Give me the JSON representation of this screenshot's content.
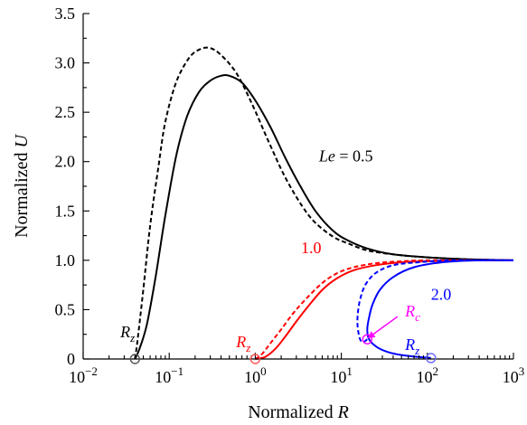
{
  "chart_data": {
    "type": "line",
    "x_scale": "log",
    "xlim": [
      0.01,
      1000
    ],
    "ylim": [
      0,
      3.5
    ],
    "x_ticks": [
      0.01,
      0.1,
      1,
      10,
      100,
      1000
    ],
    "x_tick_labels": [
      {
        "base": "10",
        "exp": "−2"
      },
      {
        "base": "10",
        "exp": "−1"
      },
      {
        "base": "10",
        "exp": "0"
      },
      {
        "base": "10",
        "exp": "1"
      },
      {
        "base": "10",
        "exp": "2"
      },
      {
        "base": "10",
        "exp": "3"
      }
    ],
    "y_ticks": [
      0,
      0.5,
      1.0,
      1.5,
      2.0,
      2.5,
      3.0,
      3.5
    ],
    "y_tick_labels": [
      "0",
      "0.5",
      "1.0",
      "1.5",
      "2.0",
      "2.5",
      "3.0",
      "3.5"
    ],
    "xlabel": {
      "prefix": "Normalized ",
      "var": "R"
    },
    "ylabel": {
      "prefix": "Normalized ",
      "var": "U"
    },
    "grid": false,
    "legend": "none",
    "series": [
      {
        "color": "#000000",
        "style": "solid",
        "points": [
          [
            0.04,
            0
          ],
          [
            0.045,
            0.1
          ],
          [
            0.055,
            0.35
          ],
          [
            0.07,
            0.85
          ],
          [
            0.09,
            1.45
          ],
          [
            0.12,
            2.05
          ],
          [
            0.16,
            2.45
          ],
          [
            0.22,
            2.7
          ],
          [
            0.3,
            2.82
          ],
          [
            0.4,
            2.87
          ],
          [
            0.5,
            2.87
          ],
          [
            0.7,
            2.8
          ],
          [
            1.0,
            2.62
          ],
          [
            1.5,
            2.35
          ],
          [
            2.2,
            2.05
          ],
          [
            3.2,
            1.78
          ],
          [
            5,
            1.5
          ],
          [
            8,
            1.3
          ],
          [
            12,
            1.2
          ],
          [
            20,
            1.12
          ],
          [
            40,
            1.06
          ],
          [
            100,
            1.03
          ],
          [
            300,
            1.01
          ],
          [
            1000,
            1.0
          ]
        ]
      },
      {
        "color": "#000000",
        "style": "dashed",
        "points": [
          [
            0.04,
            0
          ],
          [
            0.043,
            0.2
          ],
          [
            0.05,
            0.7
          ],
          [
            0.06,
            1.35
          ],
          [
            0.075,
            1.95
          ],
          [
            0.09,
            2.4
          ],
          [
            0.12,
            2.8
          ],
          [
            0.17,
            3.05
          ],
          [
            0.23,
            3.14
          ],
          [
            0.3,
            3.15
          ],
          [
            0.4,
            3.08
          ],
          [
            0.6,
            2.9
          ],
          [
            0.9,
            2.6
          ],
          [
            1.4,
            2.22
          ],
          [
            2.2,
            1.85
          ],
          [
            3.5,
            1.55
          ],
          [
            5,
            1.38
          ],
          [
            8,
            1.24
          ],
          [
            12,
            1.17
          ],
          [
            20,
            1.1
          ],
          [
            40,
            1.06
          ],
          [
            100,
            1.03
          ],
          [
            300,
            1.01
          ],
          [
            1000,
            1.0
          ]
        ]
      },
      {
        "color": "#ff0000",
        "style": "solid",
        "points": [
          [
            1,
            0
          ],
          [
            1.3,
            0.02
          ],
          [
            1.7,
            0.1
          ],
          [
            2.2,
            0.22
          ],
          [
            3,
            0.38
          ],
          [
            4,
            0.52
          ],
          [
            6,
            0.7
          ],
          [
            9,
            0.82
          ],
          [
            14,
            0.9
          ],
          [
            25,
            0.95
          ],
          [
            50,
            0.98
          ],
          [
            100,
            0.99
          ],
          [
            300,
            1.0
          ],
          [
            1000,
            1.0
          ]
        ]
      },
      {
        "color": "#ff0000",
        "style": "dashed",
        "points": [
          [
            1,
            0
          ],
          [
            1.2,
            0.05
          ],
          [
            1.5,
            0.16
          ],
          [
            2,
            0.3
          ],
          [
            2.8,
            0.47
          ],
          [
            4,
            0.62
          ],
          [
            6,
            0.77
          ],
          [
            9,
            0.87
          ],
          [
            14,
            0.93
          ],
          [
            25,
            0.97
          ],
          [
            50,
            0.99
          ],
          [
            100,
            1.0
          ],
          [
            300,
            1.0
          ],
          [
            1000,
            1.0
          ]
        ]
      },
      {
        "color": "#0000ff",
        "style": "solid",
        "points": [
          [
            110,
            0.01
          ],
          [
            80,
            0.02
          ],
          [
            50,
            0.04
          ],
          [
            35,
            0.07
          ],
          [
            26,
            0.12
          ],
          [
            21,
            0.2
          ],
          [
            20,
            0.3
          ],
          [
            21,
            0.42
          ],
          [
            23,
            0.55
          ],
          [
            28,
            0.7
          ],
          [
            40,
            0.83
          ],
          [
            70,
            0.93
          ],
          [
            150,
            0.98
          ],
          [
            400,
            1.0
          ],
          [
            1000,
            1.0
          ]
        ]
      },
      {
        "color": "#0000ff",
        "style": "dashed",
        "points": [
          [
            20,
            0.2
          ],
          [
            18,
            0.17
          ],
          [
            16.5,
            0.2
          ],
          [
            15.5,
            0.32
          ],
          [
            15.5,
            0.45
          ],
          [
            16.5,
            0.6
          ],
          [
            19,
            0.75
          ],
          [
            25,
            0.87
          ],
          [
            40,
            0.95
          ],
          [
            80,
            0.98
          ],
          [
            200,
            1.0
          ],
          [
            1000,
            1.0
          ]
        ]
      }
    ],
    "markers": [
      {
        "x": 0.04,
        "y": 0,
        "color": "#555555"
      },
      {
        "x": 1.0,
        "y": 0,
        "color": "#ff5555"
      },
      {
        "x": 20,
        "y": 0.2,
        "color": "#ff00ff"
      },
      {
        "x": 110,
        "y": 0.01,
        "color": "#6666ff"
      }
    ],
    "annotations": [
      {
        "id": "le-05",
        "x": 5.5,
        "y": 2.0,
        "color": "#000000",
        "parts": [
          {
            "t": "Le",
            "i": true
          },
          {
            "t": " = 0.5",
            "i": false
          }
        ]
      },
      {
        "id": "le-10",
        "x": 3.4,
        "y": 1.07,
        "color": "#ff0000",
        "parts": [
          {
            "t": "1.0",
            "i": false
          }
        ]
      },
      {
        "id": "le-20",
        "x": 110,
        "y": 0.6,
        "color": "#0000ff",
        "parts": [
          {
            "t": "2.0",
            "i": false
          }
        ]
      },
      {
        "id": "rz-black",
        "x": 0.027,
        "y": 0.22,
        "color": "#000000",
        "parts": [
          {
            "t": "R",
            "i": true
          }
        ],
        "sub": "z"
      },
      {
        "id": "rz-red",
        "x": 0.6,
        "y": 0.12,
        "color": "#ff0000",
        "parts": [
          {
            "t": "R",
            "i": true
          }
        ],
        "sub": "z"
      },
      {
        "id": "rz-blue",
        "x": 55,
        "y": 0.09,
        "color": "#0000ff",
        "parts": [
          {
            "t": "R",
            "i": true
          }
        ],
        "sub": "z"
      },
      {
        "id": "rc-magenta",
        "x": 55,
        "y": 0.43,
        "color": "#ff00ff",
        "parts": [
          {
            "t": "R",
            "i": true
          }
        ],
        "sub": "c"
      }
    ],
    "arrow": {
      "from": [
        45,
        0.43
      ],
      "to": [
        21,
        0.22
      ],
      "color": "#ff00ff"
    }
  }
}
